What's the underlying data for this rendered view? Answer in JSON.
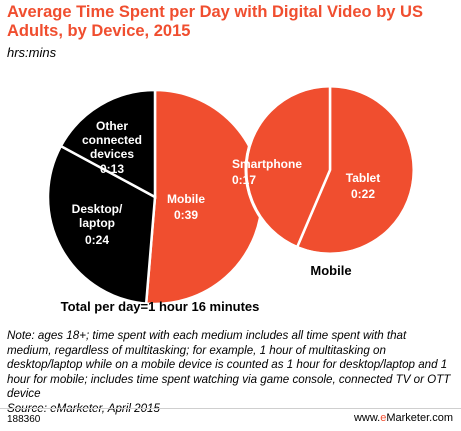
{
  "title": "Average Time Spent per Day with Digital Video by US Adults, by Device, 2015",
  "subtitle": "hrs:mins",
  "chart_data": [
    {
      "type": "pie",
      "slices": [
        {
          "label": "Mobile",
          "value_label": "0:39",
          "value": 39,
          "color": "#f04e2f"
        },
        {
          "label": "Desktop/ laptop",
          "value_label": "0:24",
          "value": 24,
          "color": "#000000"
        },
        {
          "label": "Other connected devices",
          "value_label": "0:13",
          "value": 13,
          "color": "#000000"
        }
      ],
      "total_label": "Total per day=1 hour 16 minutes"
    },
    {
      "type": "pie",
      "title": "Mobile",
      "slices": [
        {
          "label": "Tablet",
          "value_label": "0:22",
          "value": 22,
          "color": "#f04e2f"
        },
        {
          "label": "Smartphone",
          "value_label": "0:17",
          "value": 17,
          "color": "#f04e2f"
        }
      ]
    }
  ],
  "note": "Note: ages 18+; time spent with each medium includes all time spent with that medium, regardless of multitasking; for example, 1 hour of multitasking on desktop/laptop while on a mobile device is counted as 1 hour for desktop/laptop and 1 hour for mobile; includes time spent watching via game console, connected TV or OTT device",
  "source": "Source: eMarketer, April 2015",
  "footer": {
    "id": "188360",
    "brand_main": "www.",
    "brand_accent": "e",
    "brand_rest": "Marketer.com"
  }
}
